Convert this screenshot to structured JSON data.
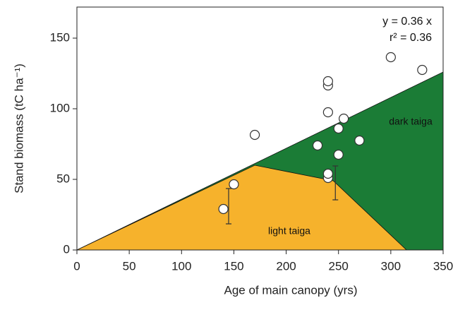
{
  "chart_data": {
    "type": "scatter",
    "xlabel": "Age of main canopy (yrs)",
    "ylabel": "Stand biomass (tC ha⁻¹)",
    "xlim": [
      0,
      350
    ],
    "ylim": [
      0,
      172
    ],
    "xticks": [
      0,
      50,
      100,
      150,
      200,
      250,
      300,
      350
    ],
    "yticks": [
      0,
      50,
      100,
      150
    ],
    "annotations": [
      "y = 0.36 x",
      "r² = 0.36"
    ],
    "areas": [
      {
        "name": "dark taiga",
        "color": "#1b7c36",
        "x": [
          0,
          350,
          350
        ],
        "y": [
          0,
          126,
          0
        ]
      },
      {
        "name": "light taiga",
        "color": "#f6b22c",
        "x": [
          0,
          170,
          245,
          315
        ],
        "y": [
          0,
          60,
          49,
          0
        ]
      }
    ],
    "x": [
      140,
      150,
      170,
      230,
      240,
      240,
      240,
      240,
      240,
      250,
      255,
      250,
      270,
      300,
      330
    ],
    "values": [
      29,
      46.5,
      81.5,
      74,
      51,
      54,
      97.5,
      116.5,
      119.5,
      86,
      93,
      67.5,
      77.5,
      136.5,
      127.5
    ],
    "error_bars": [
      {
        "x": 145,
        "y": 31,
        "err": 12.5
      },
      {
        "x": 247,
        "y": 47.5,
        "err": 12
      }
    ]
  }
}
